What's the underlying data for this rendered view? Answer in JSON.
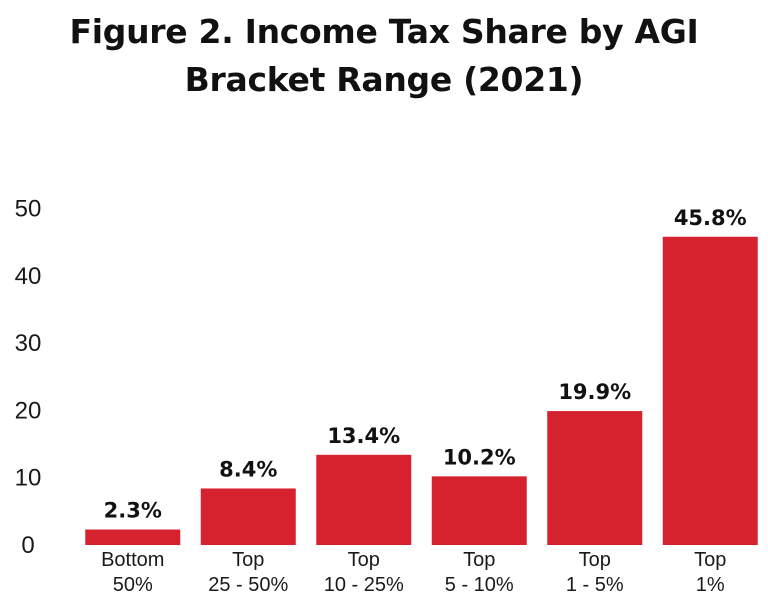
{
  "title_lines": [
    "Figure 2. Income Tax Share by AGI",
    "Bracket Range (2021)"
  ],
  "colors": {
    "bar": "#d6222e",
    "text": "#111111"
  },
  "chart_data": {
    "type": "bar",
    "title": "Figure 2. Income Tax Share by AGI Bracket Range (2021)",
    "categories": [
      [
        "Bottom",
        "50%"
      ],
      [
        "Top",
        "25 - 50%"
      ],
      [
        "Top",
        "10 - 25%"
      ],
      [
        "Top",
        "5 - 10%"
      ],
      [
        "Top",
        "1 - 5%"
      ],
      [
        "Top",
        "1%"
      ]
    ],
    "values": [
      2.3,
      8.4,
      13.4,
      10.2,
      19.9,
      45.8
    ],
    "data_labels": [
      "2.3%",
      "8.4%",
      "13.4%",
      "10.2%",
      "19.9%",
      "45.8%"
    ],
    "yticks": [
      0,
      10,
      20,
      30,
      40,
      50
    ],
    "ylim": [
      0,
      50
    ],
    "xlabel": "",
    "ylabel": "",
    "grid": false,
    "legend": "none"
  }
}
